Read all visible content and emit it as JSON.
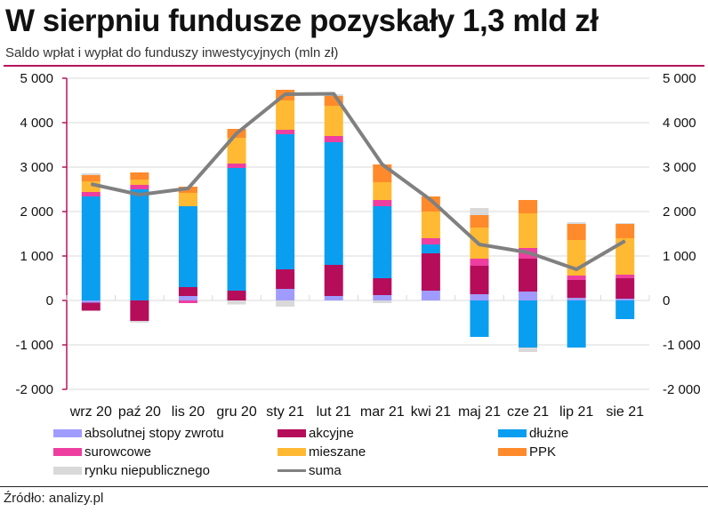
{
  "header": {
    "title": "W sierpniu fundusze pozyskały 1,3 mld zł",
    "subtitle": "Saldo wpłat i wypłat do funduszy inwestycyjnych (mln zł)"
  },
  "footer": {
    "source": "Źródło: analizy.pl"
  },
  "chart_data": {
    "type": "bar",
    "stacked": true,
    "title": "W sierpniu fundusze pozyskały 1,3 mld zł",
    "subtitle": "Saldo wpłat i wypłat do funduszy inwestycyjnych (mln zł)",
    "xlabel": "",
    "ylabel": "mln zł",
    "ylim": [
      -2000,
      5000
    ],
    "yticks": [
      5000,
      4000,
      3000,
      2000,
      1000,
      0,
      -1000,
      -2000
    ],
    "ytick_labels": [
      "5 000",
      "4 000",
      "3 000",
      "2 000",
      "1 000",
      "0",
      "-1 000",
      "-2 000"
    ],
    "secondary_y_axis": true,
    "grid": true,
    "legend_position": "bottom",
    "categories": [
      "wrz 20",
      "paź 20",
      "lis 20",
      "gru 20",
      "sty 21",
      "lut 21",
      "mar 21",
      "kwi 21",
      "maj 21",
      "cze 21",
      "lip 21",
      "sie 21"
    ],
    "series": [
      {
        "name": "absolutnej stopy zwrotu",
        "kind": "bar",
        "color": "#a09cff",
        "values": [
          -50,
          0,
          100,
          0,
          260,
          100,
          120,
          220,
          140,
          200,
          60,
          40
        ]
      },
      {
        "name": "akcyjne",
        "kind": "bar",
        "color": "#b50d5a",
        "values": [
          -180,
          -460,
          200,
          220,
          440,
          700,
          380,
          840,
          640,
          740,
          400,
          460
        ]
      },
      {
        "name": "dłużne",
        "kind": "bar",
        "color": "#0a9ef0",
        "values": [
          2340,
          2500,
          1820,
          2760,
          3040,
          2760,
          1620,
          200,
          -820,
          -1060,
          -1060,
          -420
        ]
      },
      {
        "name": "surowcowe",
        "kind": "bar",
        "color": "#ee3fa0",
        "values": [
          100,
          100,
          -60,
          100,
          100,
          140,
          140,
          140,
          160,
          240,
          100,
          80
        ]
      },
      {
        "name": "mieszane",
        "kind": "bar",
        "color": "#ffb933",
        "values": [
          240,
          120,
          300,
          580,
          660,
          680,
          400,
          600,
          700,
          780,
          800,
          820
        ]
      },
      {
        "name": "PPK",
        "kind": "bar",
        "color": "#ff8a2b",
        "values": [
          140,
          160,
          140,
          200,
          240,
          220,
          400,
          340,
          280,
          300,
          360,
          320
        ]
      },
      {
        "name": "rynku niepublicznego",
        "kind": "bar",
        "color": "#d9d9d9",
        "values": [
          40,
          -40,
          0,
          -90,
          -140,
          40,
          -60,
          0,
          160,
          -100,
          40,
          20
        ]
      },
      {
        "name": "suma",
        "kind": "line",
        "color": "#808080",
        "values": [
          2620,
          2380,
          2520,
          3760,
          4640,
          4650,
          3060,
          2260,
          1260,
          1080,
          700,
          1340
        ]
      }
    ]
  }
}
